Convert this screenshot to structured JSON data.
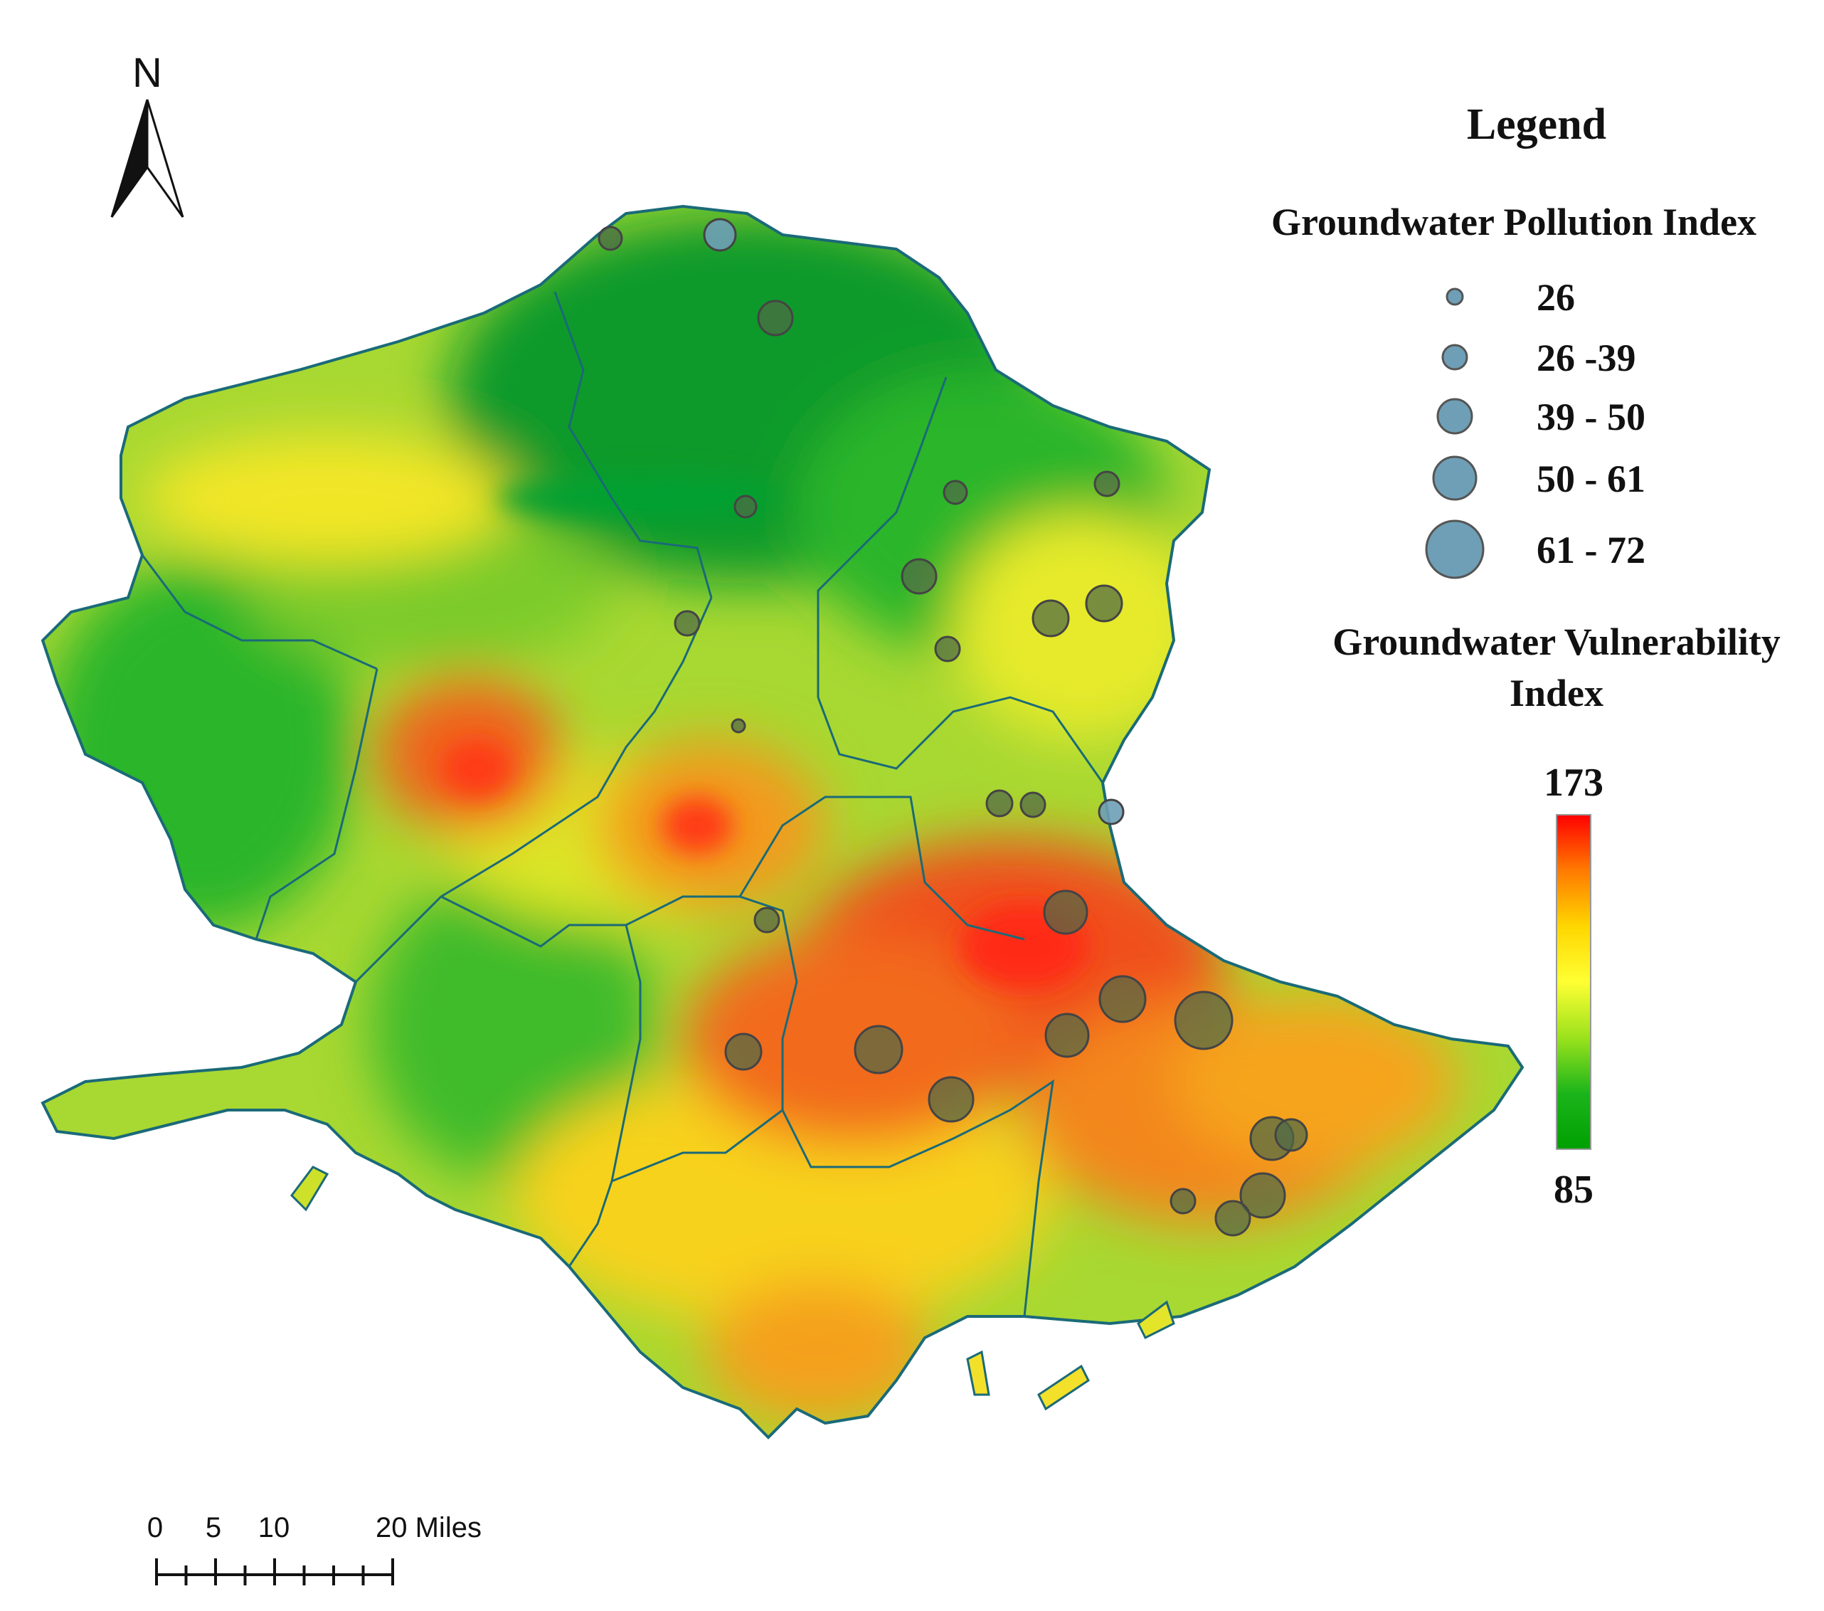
{
  "north_arrow": {
    "label": "N"
  },
  "scale_bar": {
    "labels": [
      "0",
      "5",
      "10",
      "20 Miles"
    ]
  },
  "legend": {
    "title": "Legend",
    "pollution": {
      "title": "Groundwater Pollution Index",
      "classes": [
        {
          "label": "26"
        },
        {
          "label": "26 -39"
        },
        {
          "label": "39 - 50"
        },
        {
          "label": "50 - 61"
        },
        {
          "label": "61 - 72"
        }
      ],
      "symbol_color": "#6e9fb6"
    },
    "vulnerability": {
      "title_line1": "Groundwater Vulnerability",
      "title_line2": "Index",
      "max_label": "173",
      "min_label": "85",
      "ramp_colors": [
        "#ff0000",
        "#ff7a00",
        "#ffd600",
        "#ffff33",
        "#9be21c",
        "#1bb51b",
        "#00a000"
      ]
    }
  },
  "colors": {
    "boundary": "#1a6a78",
    "high": "#f0501e",
    "mid_high": "#f7a21a",
    "mid": "#f4ee22",
    "mid_low": "#9fd830",
    "low": "#2ab52a",
    "very_low": "#0a9a2a"
  }
}
